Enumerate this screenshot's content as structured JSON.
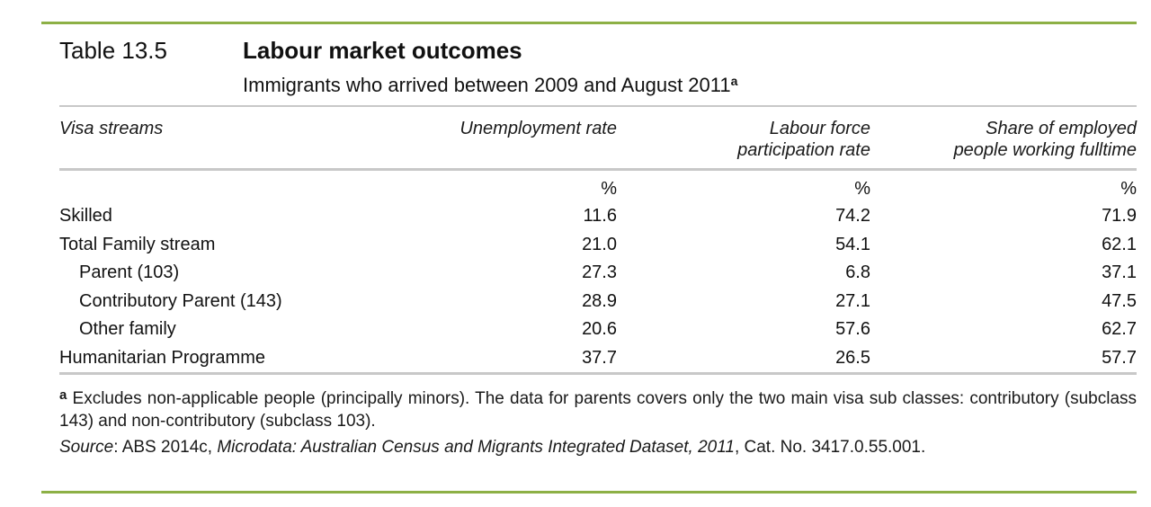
{
  "table_number": "Table 13.5",
  "title": "Labour market outcomes",
  "subtitle": "Immigrants who arrived between 2009 and August 2011",
  "subtitle_note_marker": "a",
  "columns": {
    "visa_streams": "Visa streams",
    "unemployment_rate": "Unemployment rate",
    "lfpr_line1": "Labour force",
    "lfpr_line2": "participation rate",
    "fulltime_line1": "Share of employed",
    "fulltime_line2": "people working fulltime"
  },
  "units": [
    "%",
    "%",
    "%"
  ],
  "rows": [
    {
      "label": "Skilled",
      "indent": false,
      "unemployment": "11.6",
      "participation": "74.2",
      "fulltime": "71.9"
    },
    {
      "label": "Total Family stream",
      "indent": false,
      "unemployment": "21.0",
      "participation": "54.1",
      "fulltime": "62.1"
    },
    {
      "label": "Parent (103)",
      "indent": true,
      "unemployment": "27.3",
      "participation": "6.8",
      "fulltime": "37.1"
    },
    {
      "label": "Contributory Parent (143)",
      "indent": true,
      "unemployment": "28.9",
      "participation": "27.1",
      "fulltime": "47.5"
    },
    {
      "label": "Other family",
      "indent": true,
      "unemployment": "20.6",
      "participation": "57.6",
      "fulltime": "62.7"
    },
    {
      "label": "Humanitarian Programme",
      "indent": false,
      "unemployment": "37.7",
      "participation": "26.5",
      "fulltime": "57.7"
    }
  ],
  "footnote": {
    "marker": "a",
    "text": "Excludes non-applicable people (principally minors). The data for parents covers only the two main visa sub classes: contributory (subclass 143) and non-contributory (subclass 103)."
  },
  "source": {
    "label": "Source",
    "text_plain": ": ABS 2014c, ",
    "text_italic": "Microdata: Australian Census and Migrants Integrated Dataset, 2011",
    "text_end": ", Cat. No. 3417.0.55.001."
  },
  "colors": {
    "accent_rule": "#8db046",
    "light_rule": "#c8c8c8"
  }
}
